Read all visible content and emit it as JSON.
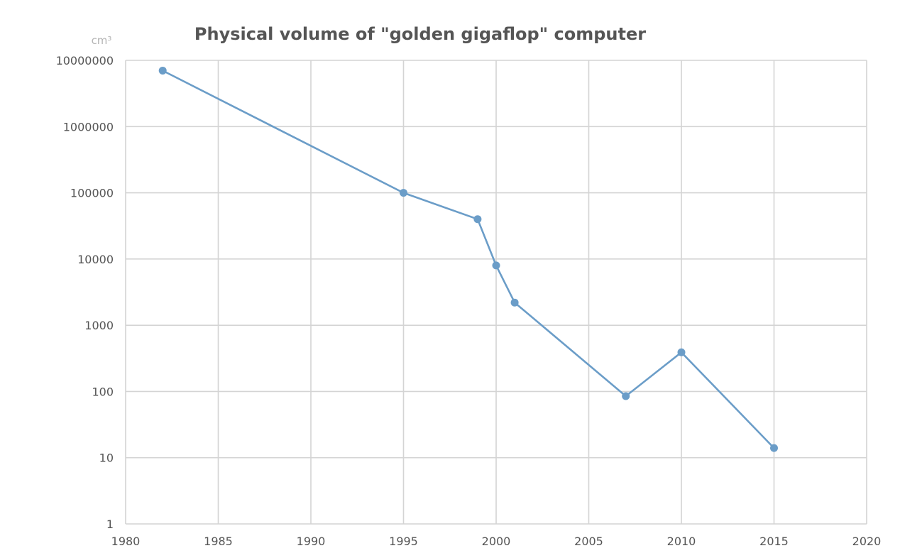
{
  "chart_data": {
    "type": "line",
    "title": "Physical volume of \"golden gigaflop\" computer",
    "ylabel": "cm³",
    "xlabel": "",
    "xlim": [
      1980,
      2020
    ],
    "ylim": [
      1,
      10000000
    ],
    "yscale": "log",
    "grid": true,
    "legend": "none",
    "x_ticks": [
      "1980",
      "1985",
      "1990",
      "1995",
      "2000",
      "2005",
      "2010",
      "2015",
      "2020"
    ],
    "y_ticks": [
      "1",
      "10",
      "100",
      "1000",
      "10000",
      "100000",
      "1000000",
      "10000000"
    ],
    "series": [
      {
        "color": "#6b9dc8",
        "points": [
          {
            "x": 1982,
            "y": 7000000
          },
          {
            "x": 1995,
            "y": 100000
          },
          {
            "x": 1999,
            "y": 40000
          },
          {
            "x": 2000,
            "y": 8000
          },
          {
            "x": 2001,
            "y": 2200
          },
          {
            "x": 2007,
            "y": 85
          },
          {
            "x": 2010,
            "y": 390
          },
          {
            "x": 2015,
            "y": 14
          }
        ]
      }
    ]
  }
}
